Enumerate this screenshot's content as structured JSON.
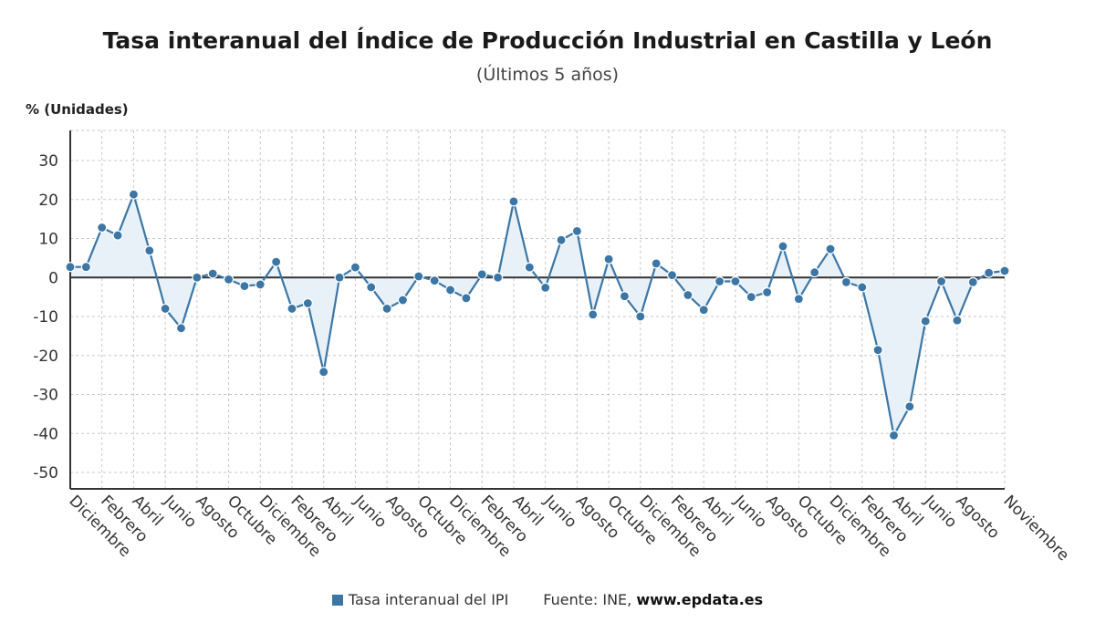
{
  "chart_data": {
    "type": "line",
    "title": "Tasa interanual del Índice de Producción Industrial en Castilla y León",
    "subtitle": "(Últimos 5 años)",
    "ylabel": "% (Unidades)",
    "ylim": [
      -50,
      30
    ],
    "yticks": [
      30,
      20,
      10,
      0,
      -10,
      -20,
      -30,
      -40,
      -50
    ],
    "grid": true,
    "fill_to_zero": true,
    "colors": {
      "line": "#3c76a4",
      "fill": "#e8f1f8",
      "zero_line": "#333333",
      "grid": "#c8c8c8",
      "axis": "#333333"
    },
    "x_tick_labels": [
      "Diciembre",
      "Febrero",
      "Abril",
      "Junio",
      "Agosto",
      "Octubre",
      "Diciembre",
      "Febrero",
      "Abril",
      "Junio",
      "Agosto",
      "Octubre",
      "Diciembre",
      "Febrero",
      "Abril",
      "Junio",
      "Agosto",
      "Octubre",
      "Diciembre",
      "Febrero",
      "Abril",
      "Junio",
      "Agosto",
      "Octubre",
      "Diciembre",
      "Febrero",
      "Abril",
      "Junio",
      "Agosto",
      "Noviembre"
    ],
    "x_tick_index": [
      0,
      2,
      4,
      6,
      8,
      10,
      12,
      14,
      16,
      18,
      20,
      22,
      24,
      26,
      28,
      30,
      32,
      34,
      36,
      38,
      40,
      42,
      44,
      46,
      48,
      50,
      52,
      54,
      56,
      59
    ],
    "series": [
      {
        "name": "Tasa interanual del IPI",
        "values": [
          2.7,
          2.7,
          12.8,
          10.8,
          21.3,
          6.9,
          -8.0,
          -13.0,
          0.0,
          1.0,
          -0.5,
          -2.2,
          -1.8,
          4.0,
          -8.0,
          -6.6,
          -24.2,
          0.0,
          2.6,
          -2.5,
          -8.0,
          -5.8,
          0.3,
          -0.8,
          -3.2,
          -5.3,
          0.8,
          0.0,
          19.5,
          2.6,
          -2.6,
          9.6,
          11.9,
          -9.5,
          4.7,
          -4.8,
          -10.0,
          3.6,
          0.6,
          -4.5,
          -8.3,
          -1.0,
          -1.0,
          -5.0,
          -3.8,
          8.0,
          -5.5,
          1.3,
          7.3,
          -1.2,
          -2.5,
          -18.6,
          -40.5,
          -33.1,
          -11.2,
          -1.0,
          -11.0,
          -1.2,
          1.2,
          1.7
        ]
      }
    ]
  },
  "legend": {
    "label": "Tasa interanual del IPI"
  },
  "source": {
    "prefix": "Fuente: INE,",
    "url": "www.epdata.es"
  }
}
